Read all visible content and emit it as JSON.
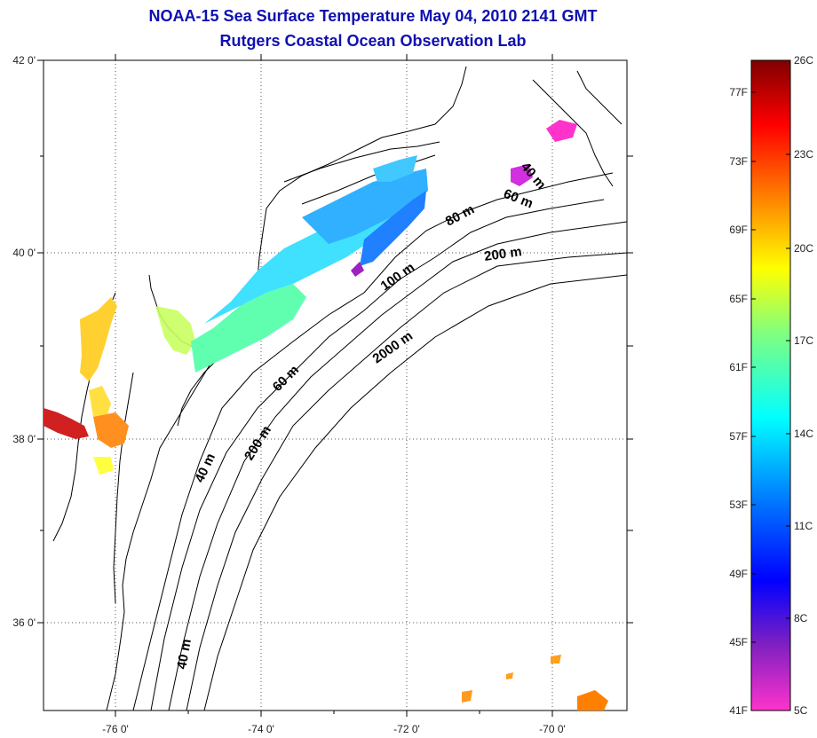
{
  "title": {
    "line1": "NOAA-15 Sea Surface Temperature May 04, 2010 2141 GMT",
    "line2": "Rutgers Coastal Ocean Observation Lab"
  },
  "map": {
    "lon_ticks": [
      "-76 0'",
      "-74 0'",
      "-72 0'",
      "-70 0'"
    ],
    "lat_ticks": [
      "42 0'",
      "40 0'",
      "38 0'",
      "36 0'"
    ],
    "contour_labels": [
      "40 m",
      "60 m",
      "80 m",
      "100 m",
      "200 m",
      "2000 m",
      "60 m",
      "200 m",
      "40 m",
      "40 m"
    ]
  },
  "colorbar": {
    "fahrenheit": [
      "77F",
      "73F",
      "69F",
      "65F",
      "61F",
      "57F",
      "53F",
      "49F",
      "45F",
      "41F"
    ],
    "celsius": [
      "26C",
      "23C",
      "20C",
      "17C",
      "14C",
      "11C",
      "8C",
      "5C"
    ],
    "colors": [
      "#ff33cc",
      "#8020c0",
      "#0000ff",
      "#0080ff",
      "#00ffff",
      "#80ff80",
      "#ffff00",
      "#ff8000",
      "#ff0000",
      "#800000"
    ]
  }
}
